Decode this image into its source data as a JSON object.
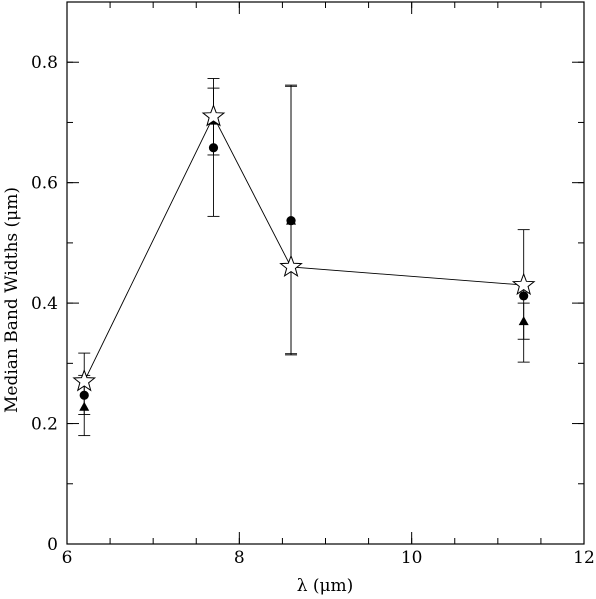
{
  "chart_data": {
    "type": "scatter",
    "xlabel": "λ  (μm)",
    "ylabel": "Median Band Widths  (μm)",
    "xlim": [
      6,
      12
    ],
    "ylim": [
      0,
      0.9
    ],
    "x_ticks": [
      6,
      8,
      10,
      12
    ],
    "x_tick_labels": [
      "6",
      "8",
      "10",
      "12"
    ],
    "y_ticks": [
      0,
      0.2,
      0.4,
      0.6,
      0.8
    ],
    "y_tick_labels": [
      "0",
      "0.2",
      "0.4",
      "0.6",
      "0.8"
    ],
    "x_minor_step": 0.5,
    "y_minor_step": 0.1,
    "grid": false,
    "series": [
      {
        "marker": "open-star",
        "connected": true,
        "points": [
          {
            "x": 6.2,
            "y": 0.27
          },
          {
            "x": 7.7,
            "y": 0.71
          },
          {
            "x": 8.6,
            "y": 0.46
          },
          {
            "x": 11.3,
            "y": 0.43
          }
        ]
      },
      {
        "marker": "filled-circle",
        "connected": false,
        "points": [
          {
            "x": 6.2,
            "y": 0.247,
            "err_low": 0.215,
            "err_high": 0.28
          },
          {
            "x": 7.7,
            "y": 0.658,
            "err_low": 0.544,
            "err_high": 0.773
          },
          {
            "x": 8.6,
            "y": 0.537,
            "err_low": 0.316,
            "err_high": 0.76
          },
          {
            "x": 11.3,
            "y": 0.412,
            "err_low": 0.302,
            "err_high": 0.522
          }
        ]
      },
      {
        "marker": "filled-triangle",
        "connected": false,
        "points": [
          {
            "x": 6.2,
            "y": 0.228,
            "err_low": 0.18,
            "err_high": 0.317
          },
          {
            "x": 7.7,
            "y": 0.703,
            "err_low": 0.646,
            "err_high": 0.757
          },
          {
            "x": 8.6,
            "y": 0.537,
            "err_low": 0.314,
            "err_high": 0.762
          },
          {
            "x": 11.3,
            "y": 0.37,
            "err_low": 0.34,
            "err_high": 0.4
          }
        ]
      }
    ]
  }
}
